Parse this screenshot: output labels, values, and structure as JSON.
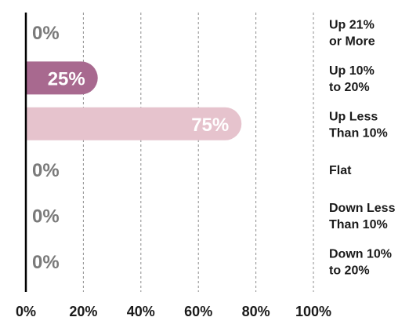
{
  "chart_data": {
    "type": "bar",
    "orientation": "horizontal",
    "categories": [
      [
        "Up 21%",
        "or More"
      ],
      [
        "Up 10%",
        "to 20%"
      ],
      [
        "Up Less",
        "Than 10%"
      ],
      [
        "Flat"
      ],
      [
        "Down Less",
        "Than 10%"
      ],
      [
        "Down 10%",
        "to 20%"
      ]
    ],
    "values": [
      0,
      25,
      75,
      0,
      0,
      0
    ],
    "value_labels": [
      "0%",
      "25%",
      "75%",
      "0%",
      "0%",
      "0%"
    ],
    "bar_colors": [
      "#a8698f",
      "#a8698f",
      "#e6c3cd",
      "#a8698f",
      "#a8698f",
      "#a8698f"
    ],
    "zero_label_color": "#7a7a7a",
    "inside_label_color": "#ffffff",
    "xlim": [
      0,
      100
    ],
    "xticks": [
      "0%",
      "20%",
      "40%",
      "60%",
      "80%",
      "100%"
    ],
    "grid": "vertical-dashed",
    "legend": "none"
  }
}
